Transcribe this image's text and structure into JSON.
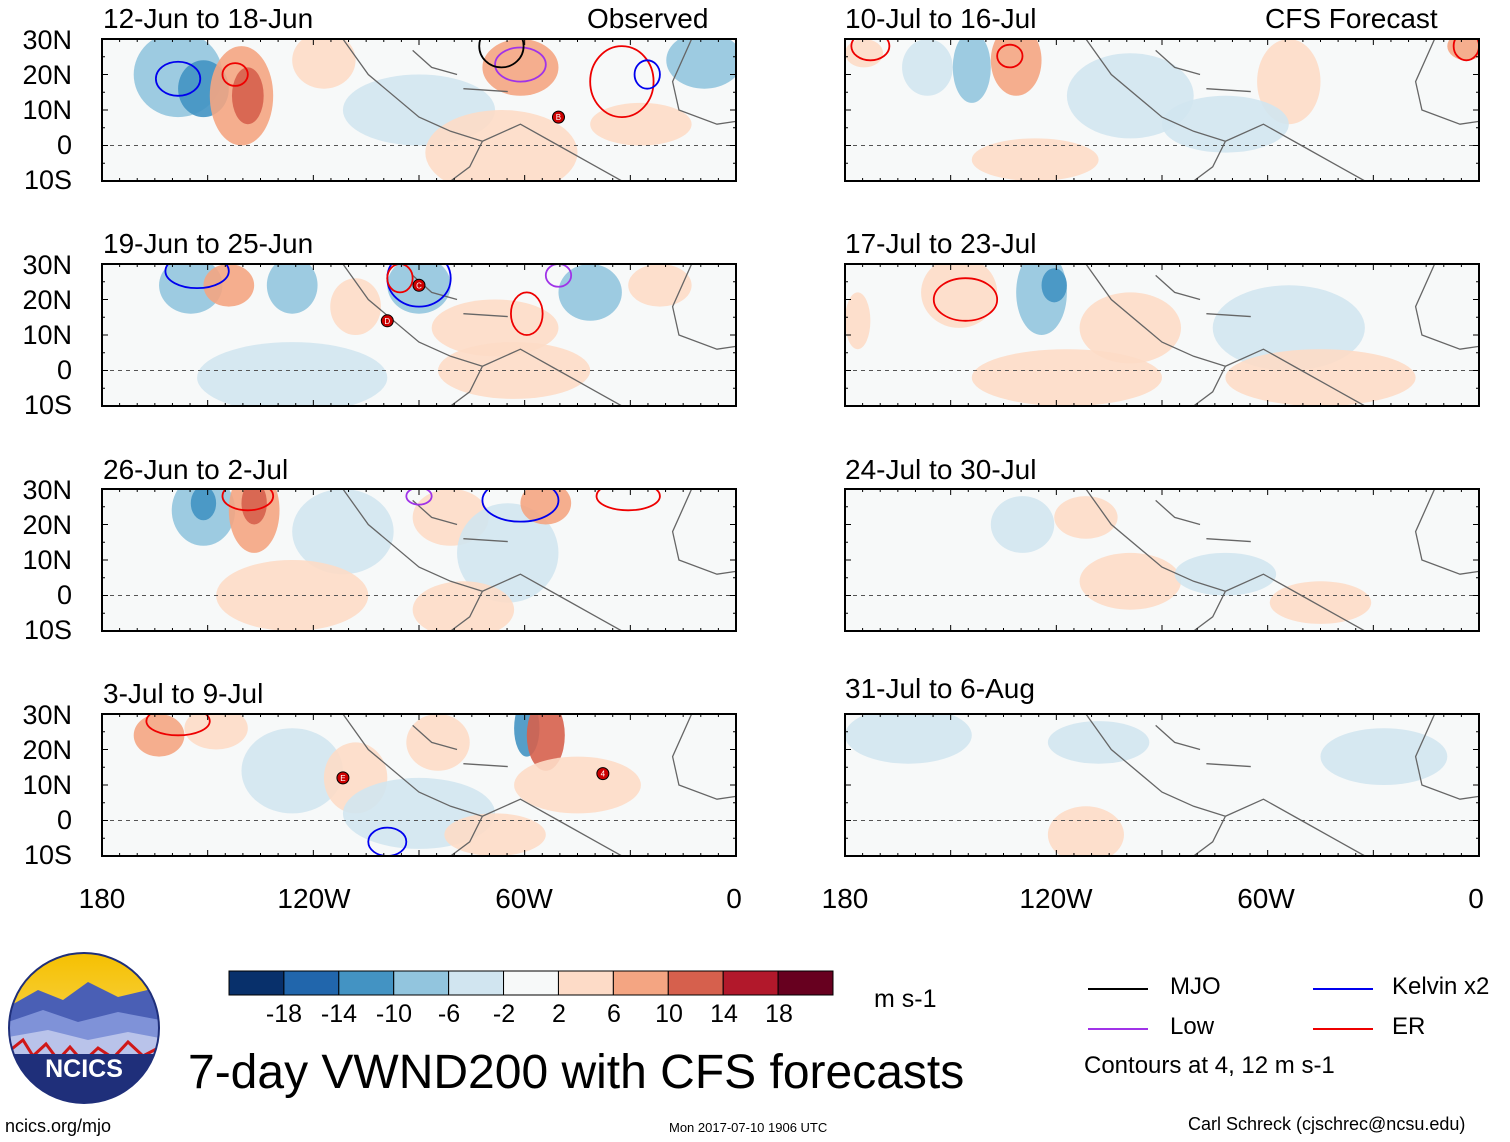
{
  "title": "7-day VWND200 with CFS forecasts",
  "logo": {
    "text": "NCICS",
    "url_text": "ncics.org/mjo"
  },
  "timestamp": "Mon 2017-07-10 1906 UTC",
  "author": "Carl Schreck (cjschrec@ncsu.edu)",
  "columns": [
    {
      "tag": "Observed",
      "panels": [
        "12-Jun to 18-Jun",
        "19-Jun to 25-Jun",
        "26-Jun to 2-Jul",
        "3-Jul to 9-Jul"
      ]
    },
    {
      "tag": "CFS Forecast",
      "panels": [
        "10-Jul to 16-Jul",
        "17-Jul to 23-Jul",
        "24-Jul to 30-Jul",
        "31-Jul to 6-Aug"
      ]
    }
  ],
  "lat_labels": [
    "30N",
    "20N",
    "10N",
    "0",
    "10S"
  ],
  "lon_labels": [
    "180",
    "120W",
    "60W",
    "0"
  ],
  "colorbar": {
    "ticks": [
      "-18",
      "-14",
      "-10",
      "-6",
      "-2",
      "2",
      "6",
      "10",
      "14",
      "18"
    ],
    "colors": [
      "#08306b",
      "#2166ac",
      "#4393c3",
      "#92c5de",
      "#d1e5f0",
      "#f7f9f9",
      "#fddbc7",
      "#f4a582",
      "#d6604d",
      "#b2182b",
      "#67001f"
    ],
    "units": "m s-1"
  },
  "legend": {
    "items": [
      {
        "label": "MJO",
        "color": "#000000"
      },
      {
        "label": "Kelvin x2",
        "color": "#0000ee"
      },
      {
        "label": "Low",
        "color": "#a033e8"
      },
      {
        "label": "ER",
        "color": "#ee0000"
      }
    ],
    "note": "Contours at 4, 12 m s-1"
  },
  "storm_markers": [
    {
      "panel": 0,
      "label": "B"
    },
    {
      "panel": 1,
      "label": "C"
    },
    {
      "panel": 1,
      "label": "D"
    },
    {
      "panel": 3,
      "label": "E"
    },
    {
      "panel": 3,
      "label": "4"
    }
  ]
}
